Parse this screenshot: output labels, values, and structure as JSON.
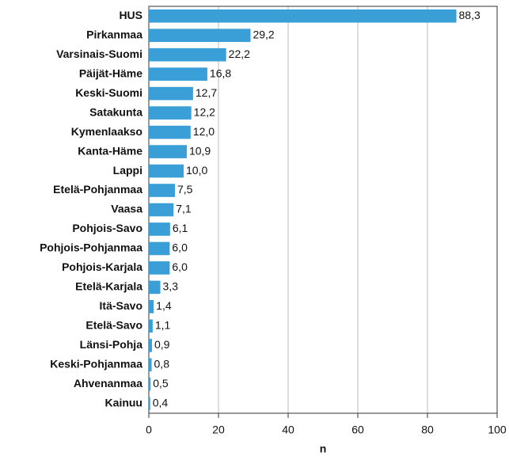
{
  "chart_data": {
    "type": "bar",
    "orientation": "horizontal",
    "categories": [
      "HUS",
      "Pirkanmaa",
      "Varsinais-Suomi",
      "Päijät-Häme",
      "Keski-Suomi",
      "Satakunta",
      "Kymenlaakso",
      "Kanta-Häme",
      "Lappi",
      "Etelä-Pohjanmaa",
      "Vaasa",
      "Pohjois-Savo",
      "Pohjois-Pohjanmaa",
      "Pohjois-Karjala",
      "Etelä-Karjala",
      "Itä-Savo",
      "Etelä-Savo",
      "Länsi-Pohja",
      "Keski-Pohjanmaa",
      "Ahvenanmaa",
      "Kainuu"
    ],
    "values": [
      88.3,
      29.2,
      22.2,
      16.8,
      12.7,
      12.2,
      12.0,
      10.9,
      10.0,
      7.5,
      7.1,
      6.1,
      6.0,
      6.0,
      3.3,
      1.4,
      1.1,
      0.9,
      0.8,
      0.5,
      0.4
    ],
    "value_labels": [
      "88,3",
      "29,2",
      "22,2",
      "16,8",
      "12,7",
      "12,2",
      "12,0",
      "10,9",
      "10,0",
      "7,5",
      "7,1",
      "6,1",
      "6,0",
      "6,0",
      "3,3",
      "1,4",
      "1,1",
      "0,9",
      "0,8",
      "0,5",
      "0,4"
    ],
    "color": "#3a9fd6",
    "xlabel": "n",
    "xlim": [
      0,
      100
    ],
    "xticks": [
      0,
      20,
      40,
      60,
      80,
      100
    ],
    "grid": true
  }
}
